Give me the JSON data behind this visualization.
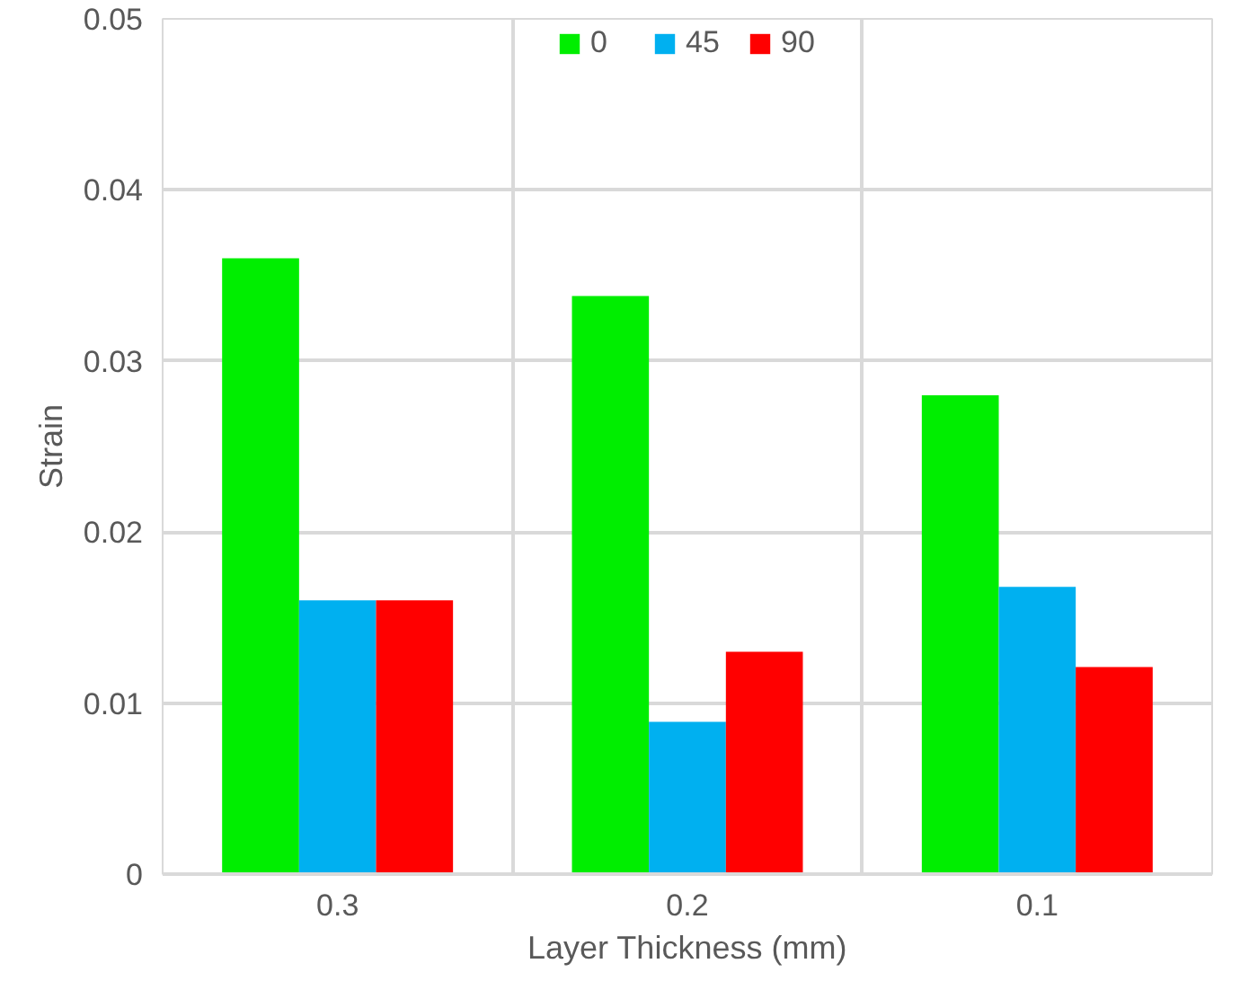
{
  "chart_data": {
    "type": "bar",
    "xlabel": "Layer Thickness (mm)",
    "ylabel": "Strain",
    "categories": [
      "0.3",
      "0.2",
      "0.1"
    ],
    "series": [
      {
        "name": "0",
        "color": "#00ee00",
        "values": [
          0.036,
          0.0338,
          0.028
        ]
      },
      {
        "name": "45",
        "color": "#00b0f0",
        "values": [
          0.016,
          0.0089,
          0.0168
        ]
      },
      {
        "name": "90",
        "color": "#ff0000",
        "values": [
          0.016,
          0.013,
          0.0121
        ]
      }
    ],
    "ylim": [
      0,
      0.05
    ],
    "yticks": [
      {
        "value": 0,
        "label": "0"
      },
      0.01,
      0.02,
      0.03,
      0.04,
      0.05
    ],
    "grid": true,
    "legend": "top"
  }
}
